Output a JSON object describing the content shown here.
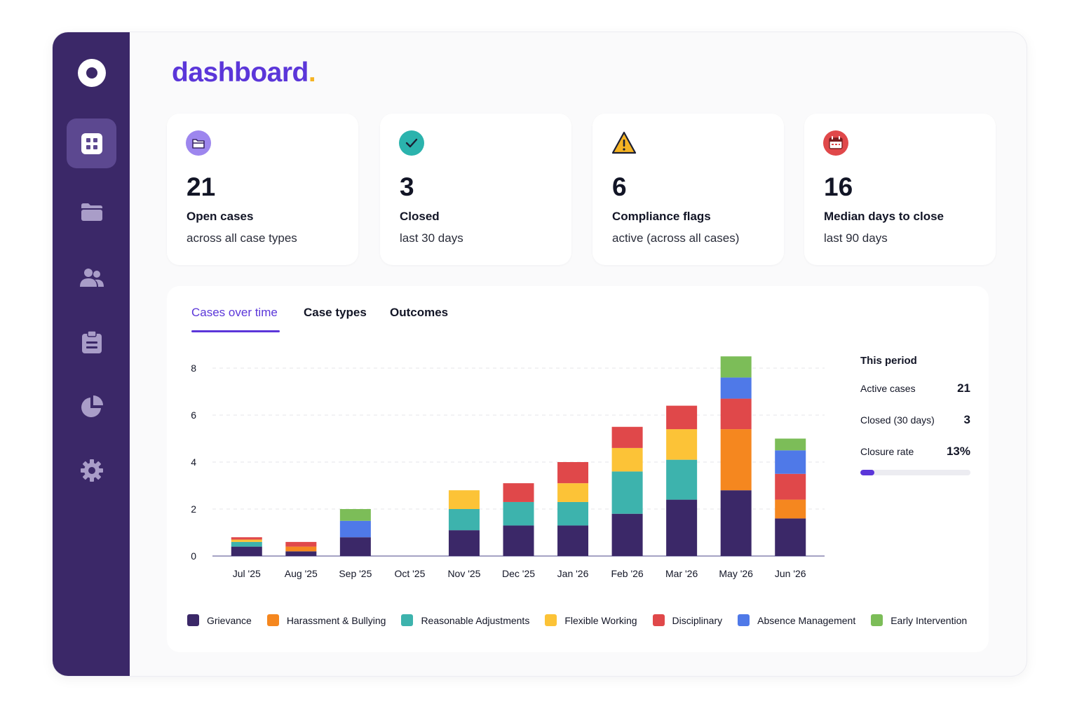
{
  "page": {
    "title": "dashboard",
    "title_dot": "."
  },
  "sidebar": {
    "logo_icon": "ring-logo-icon",
    "items": [
      {
        "icon": "grid-icon",
        "active": true
      },
      {
        "icon": "folder-icon",
        "active": false
      },
      {
        "icon": "people-icon",
        "active": false
      },
      {
        "icon": "clipboard-icon",
        "active": false
      },
      {
        "icon": "pie-chart-icon",
        "active": false
      },
      {
        "icon": "gear-icon",
        "active": false
      }
    ]
  },
  "stats": [
    {
      "icon": "folder-icon",
      "color": "#8b6be8",
      "value": "21",
      "label": "Open cases",
      "sub": "across all case types"
    },
    {
      "icon": "check-icon",
      "color": "#2bb3ad",
      "value": "3",
      "label": "Closed",
      "sub": "last 30 days"
    },
    {
      "icon": "warning-icon",
      "color": "#f5b323",
      "value": "6",
      "label": "Compliance flags",
      "sub": "active (across all cases)"
    },
    {
      "icon": "calendar-icon",
      "color": "#e0484a",
      "value": "16",
      "label": "Median days to close",
      "sub": "last 90 days"
    }
  ],
  "tabs": [
    "Cases over time",
    "Case types",
    "Outcomes"
  ],
  "active_tab": 0,
  "summary": {
    "heading": "This period",
    "rows": [
      {
        "label": "Active cases",
        "value": "21"
      },
      {
        "label": "Closed (30 days)",
        "value": "3"
      },
      {
        "label": "Closure rate",
        "value": "13%"
      }
    ],
    "closure_rate_fraction": 0.13
  },
  "chart_data": {
    "type": "bar",
    "stacked": true,
    "categories": [
      "Jul '25",
      "Aug '25",
      "Sep '25",
      "Oct '25",
      "Nov '25",
      "Dec '25",
      "Jan '26",
      "Feb '26",
      "Mar '26",
      "May '26",
      "Jun '26"
    ],
    "ylim": [
      0,
      8
    ],
    "yticks": [
      0,
      2,
      4,
      6,
      8
    ],
    "grid": true,
    "legend_position": "bottom",
    "series": [
      {
        "name": "Grievance",
        "color": "#3b2868",
        "values": [
          0.4,
          0.2,
          0.8,
          0,
          1.1,
          1.3,
          1.3,
          1.8,
          2.4,
          2.8,
          1.6
        ]
      },
      {
        "name": "Harassment & Bullying",
        "color": "#f5871f",
        "values": [
          0,
          0.2,
          0,
          0,
          0,
          0,
          0,
          0,
          0,
          2.6,
          0.8
        ]
      },
      {
        "name": "Reasonable Adjustments",
        "color": "#3db3ad",
        "values": [
          0.2,
          0,
          0,
          0,
          0.9,
          1.0,
          1.0,
          1.8,
          1.7,
          0,
          0
        ]
      },
      {
        "name": "Flexible Working",
        "color": "#fcc337",
        "values": [
          0.1,
          0,
          0,
          0,
          0.8,
          0,
          0.8,
          1.0,
          1.3,
          0,
          0
        ]
      },
      {
        "name": "Disciplinary",
        "color": "#e0484a",
        "values": [
          0.1,
          0.2,
          0,
          0,
          0,
          0.8,
          0.9,
          0.9,
          1.0,
          1.3,
          1.1
        ]
      },
      {
        "name": "Absence Management",
        "color": "#4f79e8",
        "values": [
          0,
          0,
          0.7,
          0,
          0,
          0,
          0,
          0,
          0,
          0.9,
          1.0
        ]
      },
      {
        "name": "Early Intervention",
        "color": "#7cbd58",
        "values": [
          0,
          0,
          0.5,
          0,
          0,
          0,
          0,
          0,
          0,
          0.9,
          0.5
        ]
      }
    ]
  }
}
